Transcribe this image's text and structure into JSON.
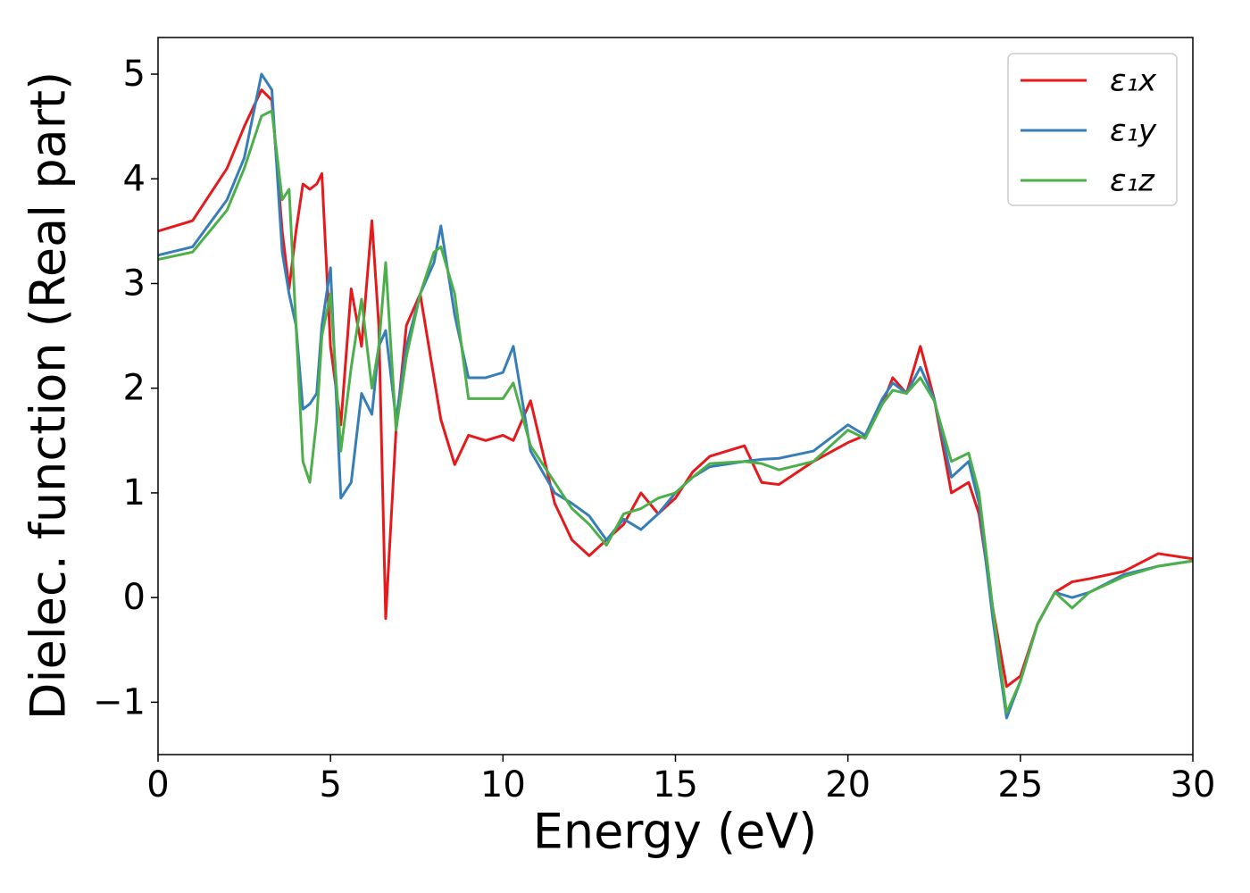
{
  "chart_data": {
    "type": "line",
    "xlabel": "Energy (eV)",
    "ylabel": "Dielec. function (Real part)",
    "x": [
      0,
      1,
      2,
      2.5,
      3,
      3.3,
      3.6,
      3.8,
      4,
      4.2,
      4.4,
      4.6,
      4.75,
      5,
      5.3,
      5.6,
      5.9,
      6.2,
      6.4,
      6.6,
      6.9,
      7.2,
      7.6,
      8,
      8.2,
      8.6,
      9,
      9.5,
      10,
      10.3,
      10.8,
      11.5,
      12,
      12.5,
      13,
      13.5,
      14,
      14.5,
      15,
      15.5,
      16,
      17,
      17.5,
      18,
      19,
      20,
      20.5,
      21,
      21.3,
      21.7,
      22.1,
      22.5,
      23,
      23.5,
      23.8,
      24.2,
      24.6,
      25,
      25.5,
      26,
      26.5,
      27,
      28,
      29,
      30
    ],
    "series": [
      {
        "name": "ε₁x",
        "color": "#e41a1c",
        "values": [
          3.5,
          3.6,
          4.1,
          4.5,
          4.85,
          4.75,
          3.5,
          2.95,
          3.5,
          3.95,
          3.9,
          3.95,
          4.05,
          2.4,
          1.65,
          2.95,
          2.4,
          3.6,
          2.6,
          -0.2,
          1.6,
          2.6,
          2.9,
          2.1,
          1.7,
          1.27,
          1.55,
          1.5,
          1.55,
          1.5,
          1.88,
          0.9,
          0.55,
          0.4,
          0.55,
          0.7,
          1.0,
          0.8,
          0.95,
          1.2,
          1.35,
          1.45,
          1.1,
          1.08,
          1.3,
          1.48,
          1.55,
          1.85,
          2.1,
          1.95,
          2.4,
          1.9,
          1.0,
          1.1,
          0.8,
          -0.1,
          -0.85,
          -0.75,
          -0.25,
          0.05,
          0.15,
          0.18,
          0.25,
          0.42,
          0.37
        ]
      },
      {
        "name": "ε₁y",
        "color": "#377eb8",
        "values": [
          3.27,
          3.35,
          3.8,
          4.2,
          5.0,
          4.85,
          3.3,
          2.9,
          2.6,
          1.8,
          1.85,
          1.95,
          2.6,
          3.15,
          0.95,
          1.1,
          1.95,
          1.75,
          2.4,
          2.55,
          1.7,
          2.4,
          2.9,
          3.2,
          3.55,
          2.7,
          2.1,
          2.1,
          2.15,
          2.4,
          1.4,
          1.0,
          0.9,
          0.78,
          0.55,
          0.75,
          0.65,
          0.8,
          1.0,
          1.15,
          1.25,
          1.3,
          1.32,
          1.33,
          1.4,
          1.65,
          1.55,
          1.9,
          2.05,
          1.95,
          2.2,
          1.9,
          1.15,
          1.3,
          0.9,
          -0.2,
          -1.15,
          -0.8,
          -0.25,
          0.05,
          0.0,
          0.05,
          0.22,
          0.3,
          0.35
        ]
      },
      {
        "name": "ε₁z",
        "color": "#4daf4a",
        "values": [
          3.23,
          3.3,
          3.7,
          4.1,
          4.6,
          4.65,
          3.8,
          3.9,
          2.6,
          1.3,
          1.1,
          1.7,
          2.5,
          2.9,
          1.4,
          2.2,
          2.85,
          2.0,
          2.4,
          3.2,
          1.6,
          2.3,
          2.9,
          3.3,
          3.35,
          2.9,
          1.9,
          1.9,
          1.9,
          2.05,
          1.45,
          1.1,
          0.85,
          0.7,
          0.5,
          0.8,
          0.85,
          0.95,
          1.0,
          1.15,
          1.28,
          1.3,
          1.28,
          1.22,
          1.3,
          1.6,
          1.52,
          1.85,
          1.98,
          1.95,
          2.1,
          1.88,
          1.3,
          1.38,
          1.0,
          -0.1,
          -1.1,
          -0.8,
          -0.25,
          0.05,
          -0.1,
          0.05,
          0.2,
          0.3,
          0.35
        ]
      }
    ],
    "xlim": [
      0,
      30
    ],
    "xticks": [
      0,
      5,
      10,
      15,
      20,
      25,
      30
    ],
    "ylim": [
      -1.5,
      5.35
    ],
    "yticks": [
      {
        "value": -1,
        "label": "−1"
      },
      0,
      1,
      2,
      3,
      4,
      5
    ],
    "legend": "upper right"
  }
}
